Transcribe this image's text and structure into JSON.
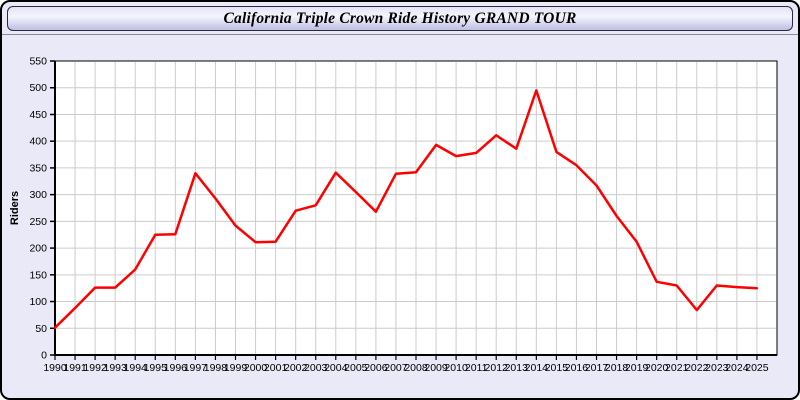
{
  "header": {
    "title": "California Triple Crown Ride History GRAND TOUR"
  },
  "chart_data": {
    "type": "line",
    "title": "California Triple Crown Ride History GRAND TOUR",
    "xlabel": "",
    "ylabel": "Riders",
    "series_name": "Riders",
    "x": [
      1990,
      1991,
      1992,
      1993,
      1994,
      1995,
      1996,
      1997,
      1998,
      1999,
      2000,
      2001,
      2002,
      2003,
      2004,
      2005,
      2006,
      2007,
      2008,
      2009,
      2010,
      2011,
      2012,
      2013,
      2014,
      2015,
      2016,
      2017,
      2018,
      2019,
      2020,
      2021,
      2022,
      2023,
      2024,
      2025
    ],
    "values": [
      51,
      88,
      126,
      126,
      160,
      225,
      226,
      340,
      293,
      242,
      211,
      212,
      270,
      280,
      341,
      305,
      268,
      339,
      342,
      393,
      372,
      378,
      411,
      386,
      495,
      380,
      355,
      317,
      260,
      212,
      137,
      130,
      84,
      130,
      127,
      125
    ],
    "ylim": [
      0,
      550
    ],
    "ytick_step": 50,
    "x_axis_end": 2026,
    "grid": true,
    "legend": "none",
    "line_color": "#ff0000",
    "colors": {
      "plot_bg": "#ffffff",
      "grid": "#cccccc",
      "axis": "#000000",
      "page_bg": "#e9e9f8",
      "tick_label": "#000000"
    }
  }
}
